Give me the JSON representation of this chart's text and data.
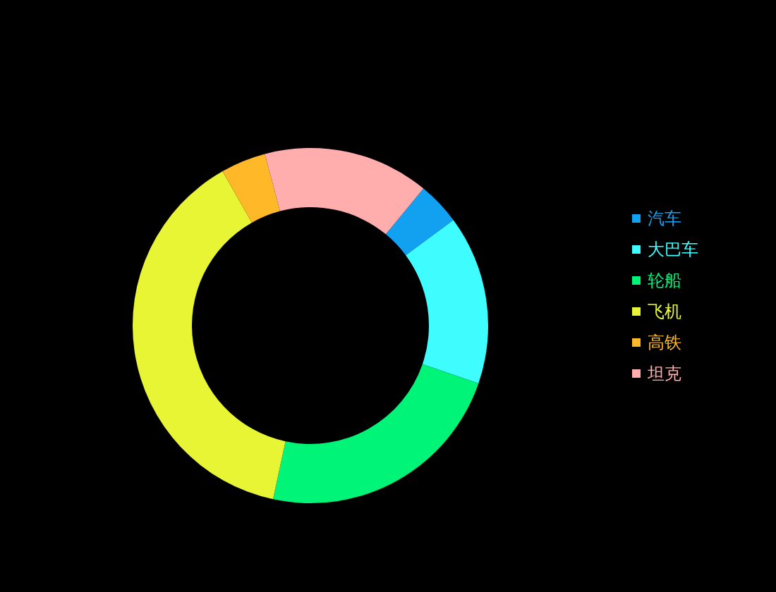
{
  "chart_data": {
    "type": "donut",
    "categories": [
      "汽车",
      "大巴车",
      "轮船",
      "飞机",
      "高铁",
      "坦克"
    ],
    "values": [
      3.9,
      15.4,
      23.1,
      38.4,
      4.1,
      15.1
    ],
    "colors": [
      "#12a0f0",
      "#3ffcff",
      "#00f478",
      "#e8f535",
      "#ffb928",
      "#ffadad"
    ],
    "legend": "right"
  }
}
